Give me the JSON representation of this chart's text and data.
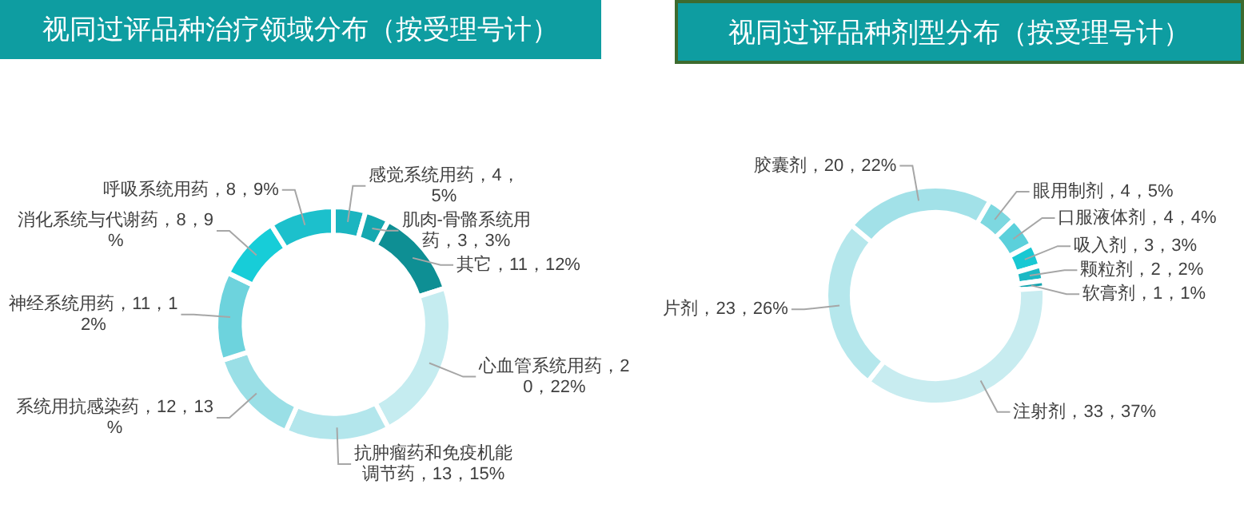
{
  "chart_data": [
    {
      "type": "donut",
      "title": "视同过评品种治疗领域分布（按受理号计）",
      "categories": [
        "感觉系统用药",
        "肌肉-骨骼系统用药",
        "其它",
        "心血管系统用药",
        "抗肿瘤药和免疫机能调节药",
        "系统用抗感染药",
        "神经系统用药",
        "消化系统与代谢药",
        "呼吸系统用药"
      ],
      "values": [
        4,
        3,
        11,
        20,
        13,
        12,
        11,
        8,
        8
      ],
      "value_labels": [
        "4，5%",
        "3，3%",
        "11，12%",
        "20，22%",
        "13，15%",
        "12，13%",
        "11，12%",
        "8，9%",
        "8，9%"
      ],
      "colors": [
        "#1bb5c0",
        "#14a8b0",
        "#0e8f94",
        "#c5ecf0",
        "#b3e6ec",
        "#9adfe6",
        "#6dd3dd",
        "#17cdd8",
        "#1cc0cc"
      ]
    },
    {
      "type": "donut",
      "title": "视同过评品种剂型分布（按受理号计）",
      "categories": [
        "眼用制剂",
        "口服液体剂",
        "吸入剂",
        "颗粒剂",
        "软膏剂",
        "注射剂",
        "片剂",
        "胶囊剂"
      ],
      "values": [
        4,
        4,
        3,
        2,
        1,
        33,
        23,
        20
      ],
      "value_labels": [
        "4，5%",
        "4，4%",
        "3，3%",
        "2，2%",
        "1，1%",
        "33，37%",
        "23，26%",
        "20，22%"
      ],
      "colors": [
        "#7dd8e0",
        "#5bd0db",
        "#18c8d3",
        "#1cb8c4",
        "#14a6b0",
        "#c8ecf0",
        "#b5e7ec",
        "#a2e1e8"
      ]
    }
  ]
}
